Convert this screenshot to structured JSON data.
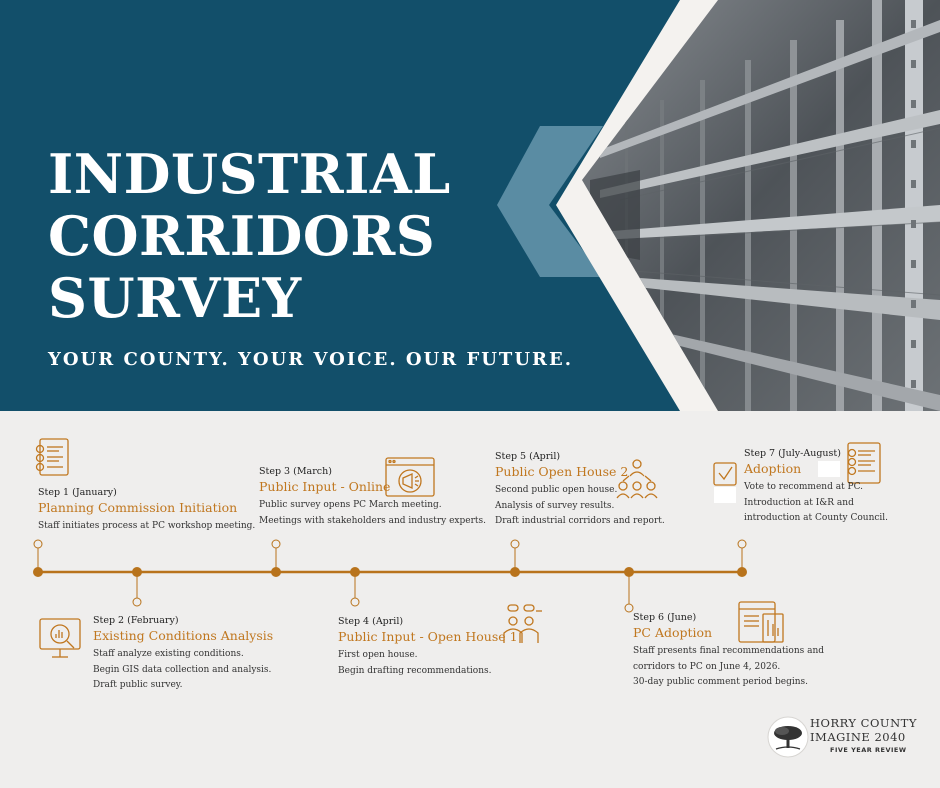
{
  "hero": {
    "title_lines": [
      "INDUSTRIAL",
      "CORRIDORS",
      "SURVEY"
    ],
    "tagline": "YOUR COUNTY. YOUR VOICE. OUR FUTURE."
  },
  "steps": [
    {
      "label": "Step 1 (January)",
      "title": "Planning Commission Initiation",
      "desc": [
        "Staff initiates process at PC workshop meeting."
      ],
      "icon": "document-list-icon"
    },
    {
      "label": "Step 2 (February)",
      "title": "Existing Conditions Analysis",
      "desc": [
        "Staff analyze existing conditions.",
        "Begin GIS data collection and analysis.",
        "Draft public survey."
      ],
      "icon": "analytics-monitor-icon"
    },
    {
      "label": "Step 3 (March)",
      "title": "Public Input - Online",
      "desc": [
        "Public survey opens PC March meeting.",
        "Meetings with stakeholders and industry experts."
      ],
      "icon": "megaphone-browser-icon"
    },
    {
      "label": "Step 4 (April)",
      "title": "Public Input - Open House 1",
      "desc": [
        "First open house.",
        "Begin drafting recommendations."
      ],
      "icon": "people-discussion-icon"
    },
    {
      "label": "Step 5 (April)",
      "title": "Public Open House 2",
      "desc": [
        "Second public open house.",
        "Analysis of survey results.",
        "Draft industrial corridors and report."
      ],
      "icon": "group-network-icon"
    },
    {
      "label": "Step 6 (June)",
      "title": "PC Adoption",
      "desc": [
        "Staff presents final recommendations and",
        "corridors to PC on June 4, 2026.",
        "30-day public comment period begins."
      ],
      "icon": "documents-tools-icon"
    },
    {
      "label": "Step 7 (July-August)",
      "title": "Adoption",
      "desc": [
        "Vote to recommend at PC.",
        "Introduction at I&R and",
        "introduction at County Council."
      ],
      "icon": "checklist-icon"
    }
  ],
  "logo": {
    "line1": "HORRY COUNTY",
    "line2": "IMAGINE 2040",
    "line3": "FIVE YEAR REVIEW"
  },
  "colors": {
    "navy": "#124f6a",
    "accent": "#c0771f",
    "line": "#b8731c",
    "background": "#efeeed"
  }
}
